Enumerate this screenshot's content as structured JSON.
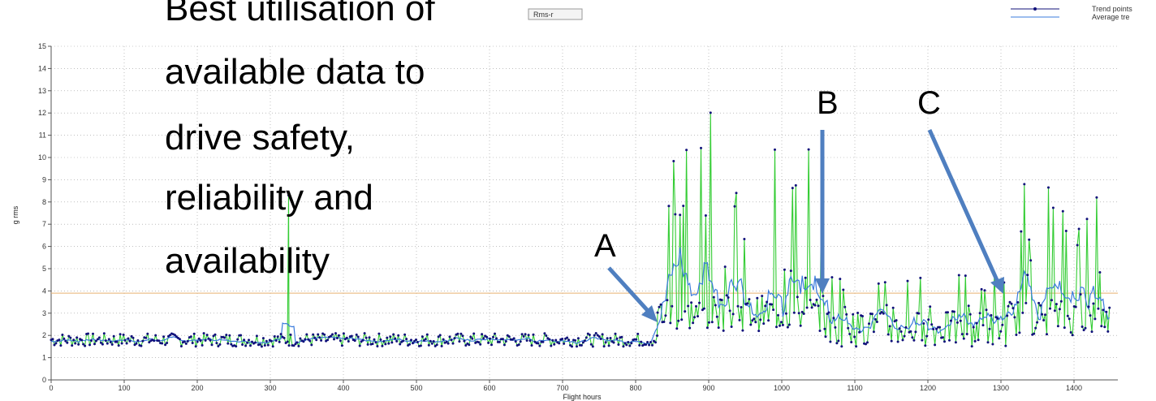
{
  "slide_text": {
    "lines": [
      "Best utilisation of",
      "available data to",
      "drive safety,",
      "reliability and",
      "availability"
    ]
  },
  "markers": [
    {
      "label": "A",
      "points_to_x": 838
    },
    {
      "label": "B",
      "points_to_x": 1053
    },
    {
      "label": "C",
      "points_to_x": 1311
    }
  ],
  "colors": {
    "trend": "#33cc33",
    "trend_points": "#10107a",
    "average": "#3a7bdc",
    "threshold": "#e8b070",
    "grid": "#9a9a9a",
    "arrow": "#4f7fc0"
  },
  "chart_data": {
    "type": "line",
    "title": "",
    "series_tag": "Rms-r",
    "xlabel": "Flight hours",
    "ylabel": "g rms",
    "xlim": [
      0,
      1460
    ],
    "ylim": [
      0,
      15
    ],
    "xticks": [
      0,
      100,
      200,
      300,
      400,
      500,
      600,
      700,
      800,
      900,
      1000,
      1100,
      1200,
      1300,
      1400
    ],
    "yticks": [
      0,
      1,
      2,
      3,
      4,
      5,
      6,
      7,
      8,
      9,
      10,
      11,
      12,
      13,
      14,
      15
    ],
    "grid": true,
    "legend_position": "top-right",
    "threshold": 3.9,
    "series": [
      {
        "name": "Trend points",
        "style": "green line with dark blue point markers"
      },
      {
        "name": "Average tre",
        "style": "blue line"
      }
    ],
    "segments": [
      {
        "x_range": [
          0,
          830
        ],
        "base_level": 1.8,
        "noise": 0.3
      },
      {
        "x_range": [
          830,
          1060
        ],
        "base_level": 2.8,
        "peak_range": [
          3.5,
          12.2
        ]
      },
      {
        "x_range": [
          1060,
          1310
        ],
        "base_level": 2.1,
        "peak_range": [
          2.5,
          5.0
        ]
      },
      {
        "x_range": [
          1310,
          1450
        ],
        "base_level": 2.6,
        "peak_range": [
          3.5,
          9.0
        ]
      }
    ],
    "spike": {
      "x": 325,
      "y": 8.3
    }
  }
}
